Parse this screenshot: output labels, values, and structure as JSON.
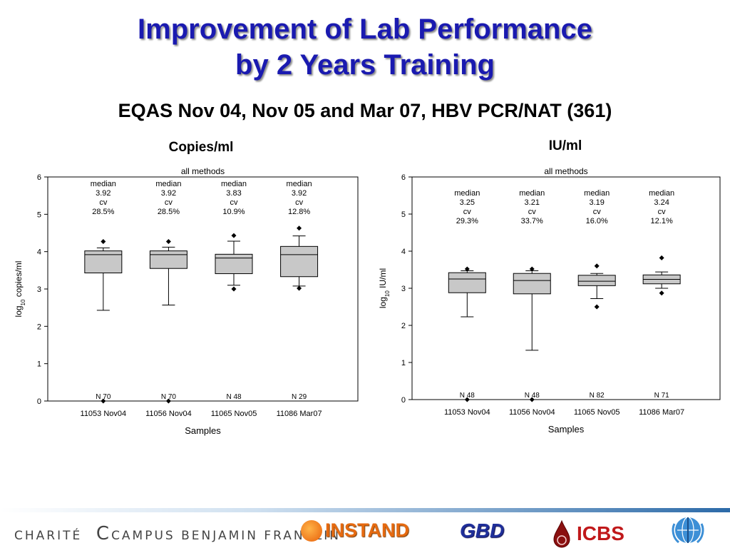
{
  "header": {
    "title_line1": "Improvement of Lab Performance",
    "title_line2": "by 2 Years Training",
    "subtitle": "EQAS Nov 04, Nov 05 and Mar 07, HBV PCR/NAT (361)"
  },
  "chart_data": [
    {
      "type": "box",
      "title": "Copies/ml",
      "subtitle": "all methods",
      "xlabel": "Samples",
      "ylabel_main": "log",
      "ylabel_sub": "10",
      "ylabel_rest": " copies/ml",
      "ylim": [
        0,
        6
      ],
      "yticks": [
        "0",
        "1",
        "2",
        "3",
        "4",
        "5",
        "6"
      ],
      "stat_label_median": "median",
      "stat_label_cv": "cv",
      "categories": [
        "11053 Nov04",
        "11056 Nov04",
        "11065 Nov05",
        "11086 Mar07"
      ],
      "boxes": [
        {
          "q1": 3.43,
          "median": 3.92,
          "q3": 4.02,
          "whisker_low": 2.43,
          "whisker_high": 4.1,
          "outliers": [
            4.27,
            0.0
          ],
          "median_text": "3.92",
          "cv_text": "28.5%",
          "n_text": "N 70"
        },
        {
          "q1": 3.55,
          "median": 3.92,
          "q3": 4.02,
          "whisker_low": 2.57,
          "whisker_high": 4.12,
          "outliers": [
            4.27,
            0.0
          ],
          "median_text": "3.92",
          "cv_text": "28.5%",
          "n_text": "N 70"
        },
        {
          "q1": 3.41,
          "median": 3.83,
          "q3": 3.93,
          "whisker_low": 3.1,
          "whisker_high": 4.28,
          "outliers": [
            4.43,
            3.0
          ],
          "median_text": "3.83",
          "cv_text": "10.9%",
          "n_text": "N 48"
        },
        {
          "q1": 3.33,
          "median": 3.92,
          "q3": 4.14,
          "whisker_low": 3.08,
          "whisker_high": 4.42,
          "outliers": [
            4.63,
            3.02
          ],
          "median_text": "3.92",
          "cv_text": "12.8%",
          "n_text": "N 29"
        }
      ]
    },
    {
      "type": "box",
      "title": "IU/ml",
      "subtitle": "all methods",
      "xlabel": "Samples",
      "ylabel_main": "log",
      "ylabel_sub": "10",
      "ylabel_rest": " IU/ml",
      "ylim": [
        0,
        6
      ],
      "yticks": [
        "0",
        "1",
        "2",
        "3",
        "4",
        "5",
        "6"
      ],
      "stat_label_median": "median",
      "stat_label_cv": "cv",
      "categories": [
        "11053 Nov04",
        "11056 Nov04",
        "11065 Nov05",
        "11086 Mar07"
      ],
      "boxes": [
        {
          "q1": 2.88,
          "median": 3.25,
          "q3": 3.42,
          "whisker_low": 2.23,
          "whisker_high": 3.47,
          "outliers": [
            3.52,
            0.0
          ],
          "median_text": "3.25",
          "cv_text": "29.3%",
          "n_text": "N 48"
        },
        {
          "q1": 2.85,
          "median": 3.21,
          "q3": 3.4,
          "whisker_low": 1.33,
          "whisker_high": 3.47,
          "outliers": [
            3.52,
            0.0
          ],
          "median_text": "3.21",
          "cv_text": "33.7%",
          "n_text": "N 48"
        },
        {
          "q1": 3.07,
          "median": 3.19,
          "q3": 3.35,
          "whisker_low": 2.72,
          "whisker_high": 3.4,
          "outliers": [
            3.6,
            2.5
          ],
          "median_text": "3.19",
          "cv_text": "16.0%",
          "n_text": "N 82"
        },
        {
          "q1": 3.12,
          "median": 3.24,
          "q3": 3.36,
          "whisker_low": 3.0,
          "whisker_high": 3.44,
          "outliers": [
            3.82,
            2.87
          ],
          "median_text": "3.24",
          "cv_text": "12.1%",
          "n_text": "N 71"
        }
      ]
    }
  ],
  "footer": {
    "charite": "CHARITÉ",
    "campus": "CAMPUS BENJAMIN FRANKLIN",
    "instand": "INSTAND",
    "gbd": "GBD",
    "icbs": "ICBS"
  },
  "colors": {
    "title": "#1a1ab0",
    "box_fill": "#c8c8c8",
    "instand": "#e66a10",
    "gbd": "#1f2f9a",
    "icbs": "#c0181a",
    "who": "#3c8fd6"
  }
}
